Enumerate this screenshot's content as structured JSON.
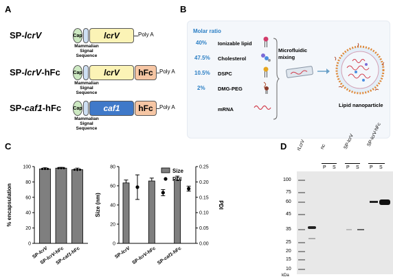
{
  "panels": {
    "a": "A",
    "b": "B",
    "c": "C",
    "d": "D"
  },
  "panelA": {
    "constructs": [
      {
        "label_prefix": "SP-",
        "label_italic": "lcrV",
        "label_suffix": "",
        "cap": "Cap",
        "gene": "lcrV",
        "tag": "",
        "polya": "Poly A",
        "mss": [
          "Mammalian",
          "Signal",
          "Sequence"
        ]
      },
      {
        "label_prefix": "SP-",
        "label_italic": "lcrV",
        "label_suffix": "-hFc",
        "cap": "Cap",
        "gene": "lcrV",
        "tag": "hFc",
        "polya": "Poly A",
        "mss": [
          "Mammalian",
          "Signal",
          "Sequence"
        ]
      },
      {
        "label_prefix": "SP-",
        "label_italic": "caf1",
        "label_suffix": "-hFc",
        "cap": "Cap",
        "gene": "caf1",
        "tag": "hFc",
        "polya": "Poly A",
        "mss": [
          "Mammalian",
          "Signal",
          "Sequence"
        ]
      }
    ]
  },
  "panelB": {
    "molar_ratio_title": "Molar ratio",
    "lipids": [
      {
        "pct": "40%",
        "name": "Ionizable lipid"
      },
      {
        "pct": "47.5%",
        "name": "Cholesterol"
      },
      {
        "pct": "10.5%",
        "name": "DSPC"
      },
      {
        "pct": "2%",
        "name": "DMG-PEG"
      },
      {
        "pct": "",
        "name": "mRNA"
      }
    ],
    "mixing_label": [
      "Microfluidic",
      "mixing"
    ],
    "lnp_label": "Lipid nanoparticle"
  },
  "colors": {
    "cap": "#cde9c2",
    "signal": "#cfe0f4",
    "lcrv": "#fbf3b6",
    "caf1": "#3f79c9",
    "hfc": "#f6c6a4",
    "bar": "#7f7f7f",
    "accent": "#2a7ec4"
  },
  "chart_data": [
    {
      "type": "bar",
      "ylabel": "% encapsulation",
      "ylim": [
        0,
        100
      ],
      "yticks": [
        "0",
        "20",
        "40",
        "60",
        "80",
        "100"
      ],
      "categories": [
        "SP-lcrV",
        "SP-lcrV-hFc",
        "SP-caf1-hFc"
      ],
      "values": [
        97,
        98,
        96
      ],
      "errors": [
        1.5,
        1,
        2
      ]
    },
    {
      "type": "bar",
      "ylabel": "Size (nm)",
      "y2label": "PDI",
      "ylim": [
        0,
        80
      ],
      "y2lim": [
        0,
        0.25
      ],
      "yticks": [
        "0",
        "20",
        "40",
        "60",
        "80"
      ],
      "y2ticks": [
        "0.00",
        "0.05",
        "0.10",
        "0.15",
        "0.20",
        "0.25"
      ],
      "categories": [
        "SP-lcrV",
        "SP-lcrV-hFc",
        "SP-caf1-hFc"
      ],
      "series": [
        {
          "name": "Size",
          "values": [
            63,
            65,
            66
          ],
          "errors": [
            3,
            3,
            4
          ]
        },
        {
          "name": "PDI",
          "values": [
            0.183,
            0.165,
            0.178
          ],
          "errors": [
            0.04,
            0.01,
            0.008
          ]
        }
      ],
      "legend": "top-right"
    }
  ],
  "panelD": {
    "lane_labels": [
      "rLcrV",
      "nc",
      "SP-lcrV",
      "SP-lcrV-hFc"
    ],
    "ps": [
      "P",
      "S",
      "P",
      "S",
      "P",
      "S"
    ],
    "mw": [
      "100",
      "75",
      "60",
      "45",
      "35",
      "25",
      "20",
      "15",
      "10"
    ],
    "unit": "kDa"
  }
}
